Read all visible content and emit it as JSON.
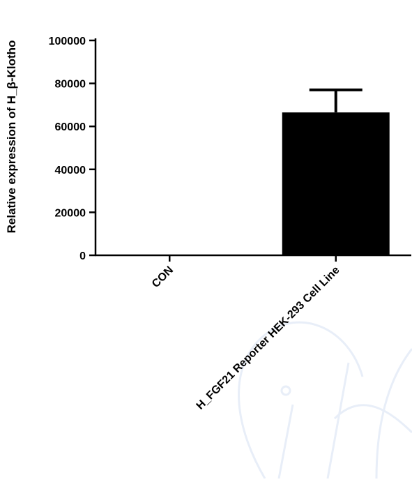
{
  "chart_data": {
    "type": "bar",
    "title": "",
    "xlabel": "",
    "ylabel": "Relative expression of H_β-Klotho",
    "categories": [
      "CON",
      "H_FGF21 Reporter HEK-293 Cell Line"
    ],
    "values": [
      0,
      66500
    ],
    "error_upper": [
      0,
      77000
    ],
    "ylim": [
      0,
      100000
    ],
    "yticks": [
      0,
      20000,
      40000,
      60000,
      80000,
      100000
    ],
    "ytick_labels": [
      "0",
      "20000",
      "40000",
      "60000",
      "80000",
      "100000"
    ],
    "grid": false,
    "legend": "none",
    "colors": {
      "bar": "#000000",
      "axis": "#000000",
      "watermark": "#e8eef8"
    }
  }
}
